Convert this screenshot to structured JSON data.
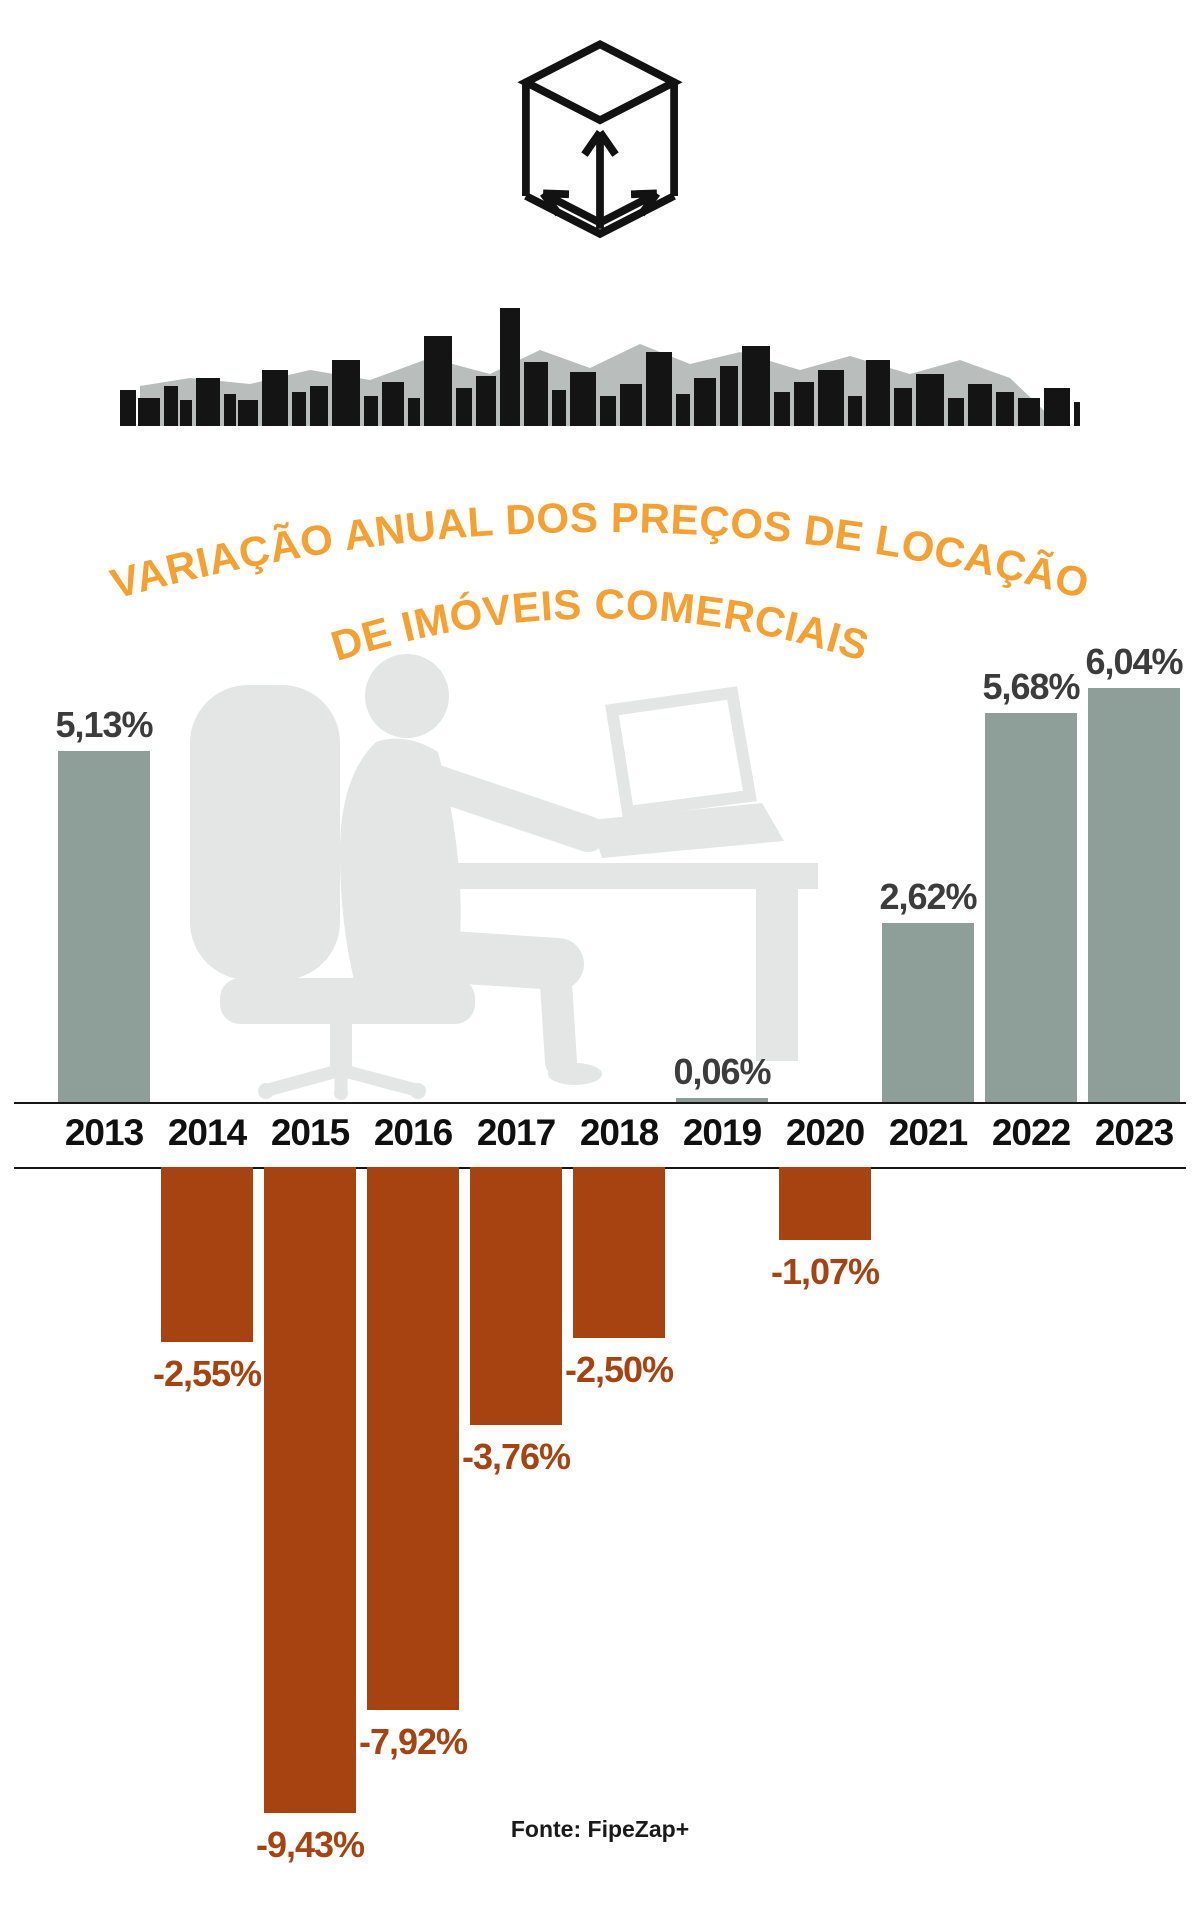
{
  "header": {
    "icons": {
      "cube": "volume-cube-icon",
      "skyline": "city-skyline-silhouette",
      "office": "office-worker-silhouette"
    }
  },
  "title": {
    "line1": "VARIAÇÃO ANUAL DOS PREÇOS DE LOCAÇÃO",
    "line2": "DE IMÓVEIS COMERCIAIS"
  },
  "colors": {
    "positive_bar": "#8E9E99",
    "negative_bar": "#A64310",
    "positive_label": "#3C3C3C",
    "negative_label": "#A64310",
    "title_orange": "#F5A02F",
    "illustration_gray": "#E3E6E4",
    "axis": "#161616"
  },
  "footer": {
    "source": "Fonte: FipeZap+"
  },
  "chart_data": {
    "type": "bar",
    "title": "VARIAÇÃO ANUAL DOS PREÇOS DE LOCAÇÃO DE IMÓVEIS COMERCIAIS",
    "categories": [
      "2013",
      "2014",
      "2015",
      "2016",
      "2017",
      "2018",
      "2019",
      "2020",
      "2021",
      "2022",
      "2023"
    ],
    "values": [
      5.13,
      -2.55,
      -9.43,
      -7.92,
      -3.76,
      -2.5,
      0.06,
      -1.07,
      2.62,
      5.68,
      6.04
    ],
    "labels": [
      "5,13%",
      "-2,55%",
      "-9,43%",
      "-7,92%",
      "-3,76%",
      "-2,50%",
      "0,06%",
      "-1,07%",
      "2,62%",
      "5,68%",
      "6,04%"
    ],
    "unit": "%",
    "xlabel": "",
    "ylabel": "",
    "ylim": [
      -9.43,
      6.04
    ],
    "grid": false,
    "legend": false,
    "source": "Fonte: FipeZap+"
  }
}
